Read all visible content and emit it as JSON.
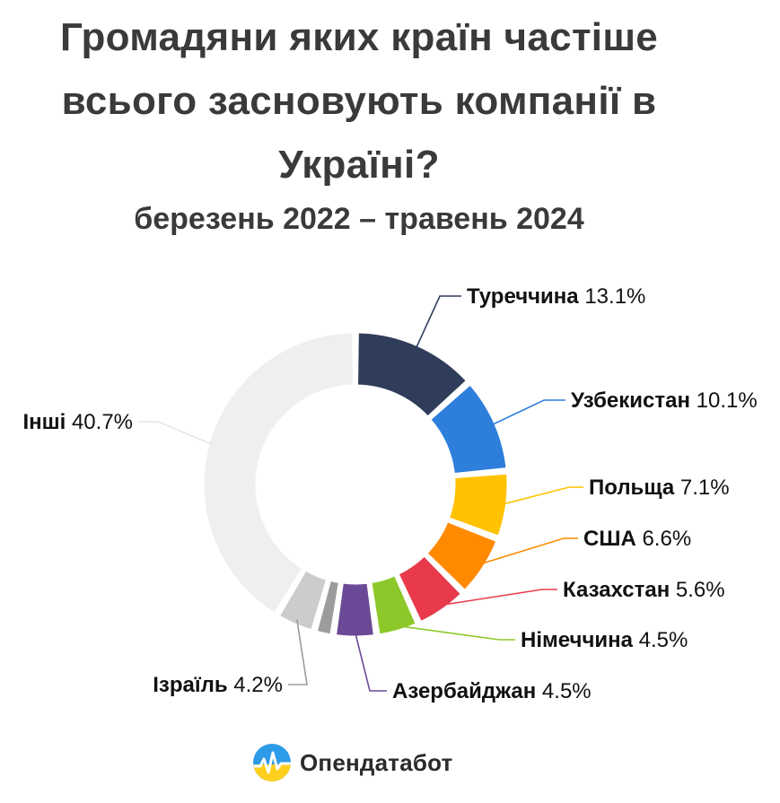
{
  "header": {
    "title_lines": [
      "Громадяни яких країн частіше",
      "всього засновують компанії в",
      "Україні?"
    ],
    "subtitle": "березень 2022 – травень 2024"
  },
  "brand": {
    "name": "Опендатабот",
    "icon": "sun-heartbeat-logo-icon"
  },
  "chart_data": {
    "type": "pie",
    "donut": true,
    "unit": "%",
    "slices": [
      {
        "label": "Туреччина",
        "value": 13.1,
        "display": "13.1%",
        "color": "#2f3c5a"
      },
      {
        "label": "Узбекистан",
        "value": 10.1,
        "display": "10.1%",
        "color": "#2e7fdb"
      },
      {
        "label": "Польща",
        "value": 7.1,
        "display": "7.1%",
        "color": "#ffc200"
      },
      {
        "label": "США",
        "value": 6.6,
        "display": "6.6%",
        "color": "#ff8a00"
      },
      {
        "label": "Казахстан",
        "value": 5.6,
        "display": "5.6%",
        "color": "#e83a4a"
      },
      {
        "label": "Німеччина",
        "value": 4.5,
        "display": "4.5%",
        "color": "#8cc829"
      },
      {
        "label": "Азербайджан",
        "value": 4.5,
        "display": "4.5%",
        "color": "#6a4a96"
      },
      {
        "label": "",
        "value": 2.0,
        "display": "",
        "color": "#9c9c9c"
      },
      {
        "label": "Ізраїль",
        "value": 4.2,
        "display": "4.2%",
        "color": "#cccccc"
      },
      {
        "label": "Інші",
        "value": 40.7,
        "display": "40.7%",
        "color": "#efefef"
      }
    ]
  }
}
